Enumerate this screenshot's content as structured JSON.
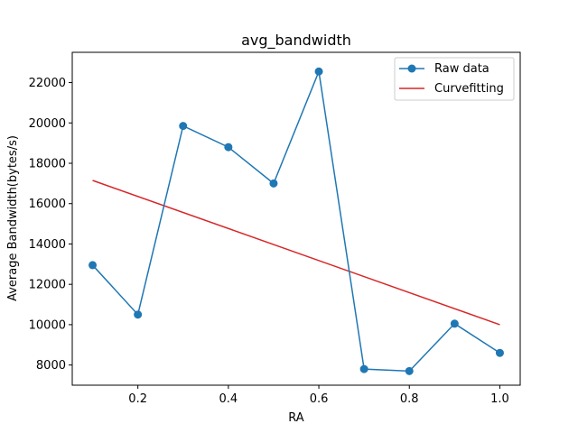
{
  "chart_data": {
    "type": "line",
    "title": "avg_bandwidth",
    "xlabel": "RA",
    "ylabel": "Average Bandwidth(bytes/s)",
    "xlim": [
      0.055,
      1.045
    ],
    "ylim": [
      7000,
      23500
    ],
    "xticks": [
      0.2,
      0.4,
      0.6,
      0.8,
      1.0
    ],
    "xtick_labels": [
      "0.2",
      "0.4",
      "0.6",
      "0.8",
      "1.0"
    ],
    "yticks": [
      8000,
      10000,
      12000,
      14000,
      16000,
      18000,
      20000,
      22000
    ],
    "ytick_labels": [
      "8000",
      "10000",
      "12000",
      "14000",
      "16000",
      "18000",
      "20000",
      "22000"
    ],
    "grid": false,
    "legend_position": "top-right",
    "series": [
      {
        "name": "Raw data",
        "color": "#1f77b4",
        "marker": "circle",
        "x": [
          0.1,
          0.2,
          0.3,
          0.4,
          0.5,
          0.6,
          0.7,
          0.8,
          0.9,
          1.0
        ],
        "y": [
          12950,
          10500,
          19850,
          18800,
          17000,
          22550,
          7800,
          7700,
          10050,
          8600
        ]
      },
      {
        "name": "Curvefitting",
        "color": "#d62728",
        "marker": "none",
        "x": [
          0.1,
          1.0
        ],
        "y": [
          17150,
          10000
        ]
      }
    ]
  }
}
